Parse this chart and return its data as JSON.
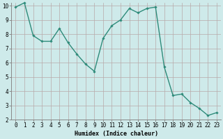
{
  "x": [
    0,
    1,
    2,
    3,
    4,
    5,
    6,
    7,
    8,
    9,
    10,
    11,
    12,
    13,
    14,
    15,
    16,
    17,
    18,
    19,
    20,
    21,
    22,
    23
  ],
  "y": [
    9.9,
    10.2,
    7.9,
    7.5,
    7.5,
    8.4,
    7.4,
    6.6,
    5.9,
    5.4,
    7.7,
    8.6,
    9.0,
    9.8,
    9.5,
    9.8,
    9.9,
    5.7,
    3.7,
    3.8,
    3.2,
    2.8,
    2.3,
    2.5
  ],
  "line_color": "#2e8b7a",
  "marker": "D",
  "marker_size": 1.8,
  "line_width": 1.0,
  "background_color": "#ceeaea",
  "grid_color": "#b8a8a8",
  "xlabel": "Humidex (Indice chaleur)",
  "ylim": [
    2,
    10
  ],
  "xlim": [
    -0.5,
    23.5
  ],
  "yticks": [
    2,
    3,
    4,
    5,
    6,
    7,
    8,
    9,
    10
  ],
  "xticks": [
    0,
    1,
    2,
    3,
    4,
    5,
    6,
    7,
    8,
    9,
    10,
    11,
    12,
    13,
    14,
    15,
    16,
    17,
    18,
    19,
    20,
    21,
    22,
    23
  ],
  "xlabel_fontsize": 6.0,
  "tick_fontsize": 5.5,
  "ylabel_fontsize": 6.0
}
